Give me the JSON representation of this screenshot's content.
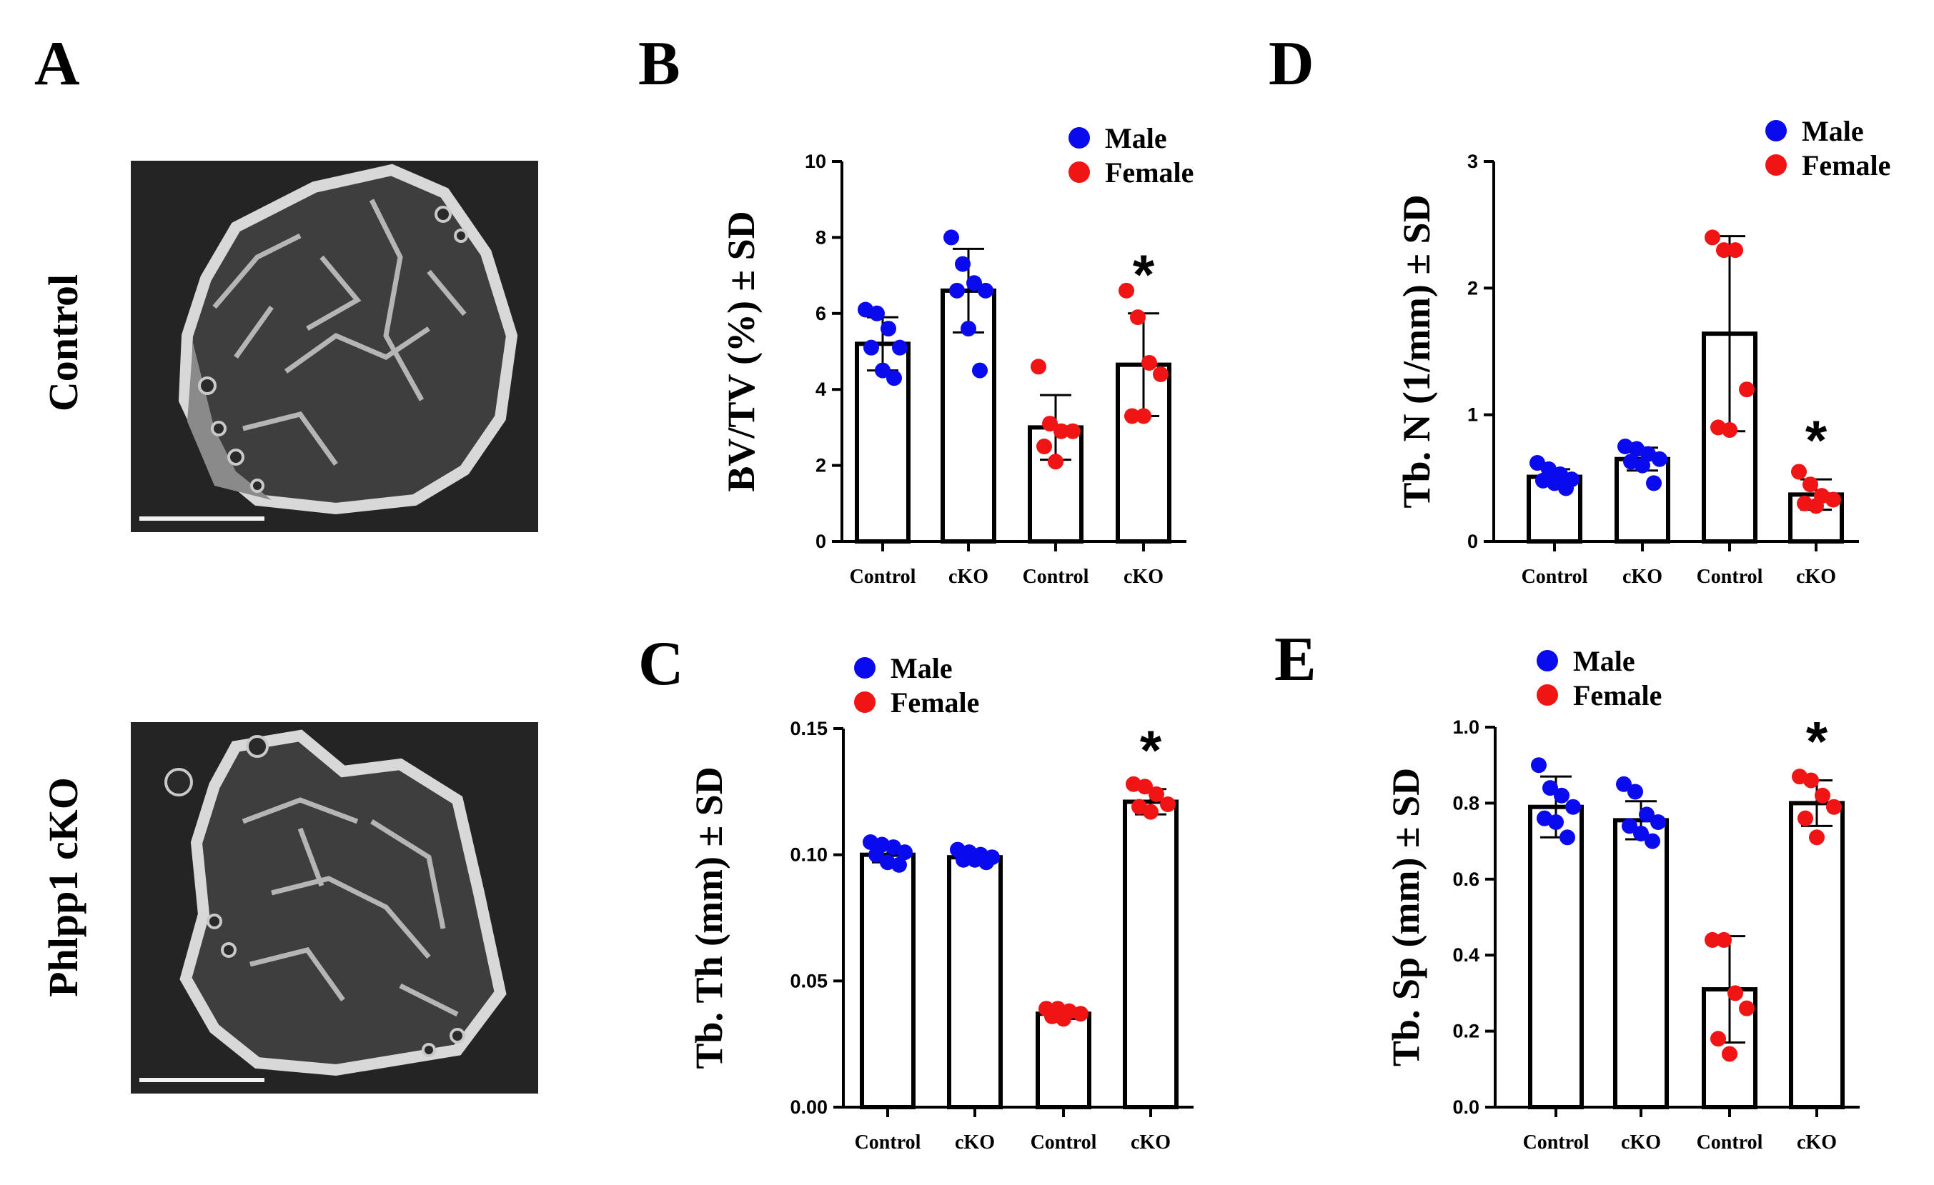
{
  "panel_a": {
    "letter": "A",
    "images": [
      {
        "label": "Control"
      },
      {
        "label": "Phlpp1  cKO"
      }
    ]
  },
  "colors": {
    "male": "#0a0aee",
    "female": "#f01414",
    "bar_fill": "#ffffff",
    "axis": "#000000"
  },
  "chart_data": [
    {
      "id": "B",
      "type": "bar",
      "ylabel": "BV/TV (%) ± SD",
      "categories": [
        "Control",
        "cKO",
        "Control",
        "cKO"
      ],
      "ylim": [
        0,
        10
      ],
      "yticks": [
        0,
        2,
        4,
        6,
        8,
        10
      ],
      "yticklabels": [
        "0",
        "2",
        "4",
        "6",
        "8",
        "10"
      ],
      "legend": [
        "Male",
        "Female"
      ],
      "values": [
        5.2,
        6.6,
        3.0,
        4.65
      ],
      "sd": [
        0.7,
        1.1,
        0.85,
        1.35
      ],
      "sex": [
        "male",
        "male",
        "female",
        "female"
      ],
      "points": [
        [
          6.1,
          6.0,
          5.6,
          5.1,
          5.1,
          4.5,
          4.3
        ],
        [
          8.0,
          7.3,
          6.8,
          6.6,
          6.6,
          5.6,
          4.5
        ],
        [
          4.6,
          3.1,
          2.9,
          2.9,
          2.5,
          2.1
        ],
        [
          6.6,
          5.9,
          4.7,
          4.4,
          3.3,
          3.3
        ]
      ],
      "significance": [
        null,
        null,
        null,
        "*"
      ]
    },
    {
      "id": "D",
      "type": "bar",
      "ylabel": "Tb. N (1/mm) ± SD",
      "categories": [
        "Control",
        "cKO",
        "Control",
        "cKO"
      ],
      "ylim": [
        0,
        3
      ],
      "yticks": [
        0,
        1,
        2,
        3
      ],
      "yticklabels": [
        "0",
        "1",
        "2",
        "3"
      ],
      "legend": [
        "Male",
        "Female"
      ],
      "values": [
        0.51,
        0.65,
        1.64,
        0.37
      ],
      "sd": [
        0.06,
        0.09,
        0.77,
        0.12
      ],
      "sex": [
        "male",
        "male",
        "female",
        "female"
      ],
      "points": [
        [
          0.62,
          0.57,
          0.53,
          0.49,
          0.48,
          0.46,
          0.42
        ],
        [
          0.75,
          0.73,
          0.69,
          0.65,
          0.63,
          0.6,
          0.46
        ],
        [
          2.4,
          2.3,
          2.3,
          1.2,
          0.9,
          0.88
        ],
        [
          0.55,
          0.45,
          0.36,
          0.33,
          0.3,
          0.28
        ]
      ],
      "significance": [
        null,
        null,
        null,
        "*"
      ]
    },
    {
      "id": "C",
      "type": "bar",
      "ylabel": "Tb. Th (mm) ± SD",
      "categories": [
        "Control",
        "cKO",
        "Control",
        "cKO"
      ],
      "ylim": [
        0,
        0.15
      ],
      "yticks": [
        0,
        0.05,
        0.1,
        0.15
      ],
      "yticklabels": [
        "0.00",
        "0.05",
        "0.10",
        "0.15"
      ],
      "legend": [
        "Male",
        "Female"
      ],
      "values": [
        0.1,
        0.099,
        0.037,
        0.121
      ],
      "sd": [
        0.003,
        0.002,
        0.002,
        0.005
      ],
      "sex": [
        "male",
        "male",
        "female",
        "female"
      ],
      "points": [
        [
          0.105,
          0.104,
          0.103,
          0.101,
          0.1,
          0.097,
          0.096
        ],
        [
          0.102,
          0.101,
          0.1,
          0.099,
          0.098,
          0.098,
          0.097
        ],
        [
          0.039,
          0.039,
          0.038,
          0.037,
          0.036,
          0.035
        ],
        [
          0.128,
          0.127,
          0.124,
          0.12,
          0.119,
          0.117
        ]
      ],
      "significance": [
        null,
        null,
        null,
        "*"
      ]
    },
    {
      "id": "E",
      "type": "bar",
      "ylabel": "Tb. Sp (mm) ± SD",
      "categories": [
        "Control",
        "cKO",
        "Control",
        "cKO"
      ],
      "ylim": [
        0,
        1.0
      ],
      "yticks": [
        0,
        0.2,
        0.4,
        0.6,
        0.8,
        1.0
      ],
      "yticklabels": [
        "0.0",
        "0.2",
        "0.4",
        "0.6",
        "0.8",
        "1.0"
      ],
      "legend": [
        "Male",
        "Female"
      ],
      "values": [
        0.79,
        0.755,
        0.31,
        0.8
      ],
      "sd": [
        0.08,
        0.05,
        0.14,
        0.06
      ],
      "sex": [
        "male",
        "male",
        "female",
        "female"
      ],
      "points": [
        [
          0.9,
          0.84,
          0.82,
          0.79,
          0.76,
          0.75,
          0.71
        ],
        [
          0.85,
          0.83,
          0.77,
          0.75,
          0.74,
          0.72,
          0.7
        ],
        [
          0.44,
          0.44,
          0.3,
          0.26,
          0.18,
          0.14
        ],
        [
          0.87,
          0.86,
          0.82,
          0.79,
          0.76,
          0.71
        ]
      ],
      "significance": [
        null,
        null,
        null,
        "*"
      ]
    }
  ]
}
